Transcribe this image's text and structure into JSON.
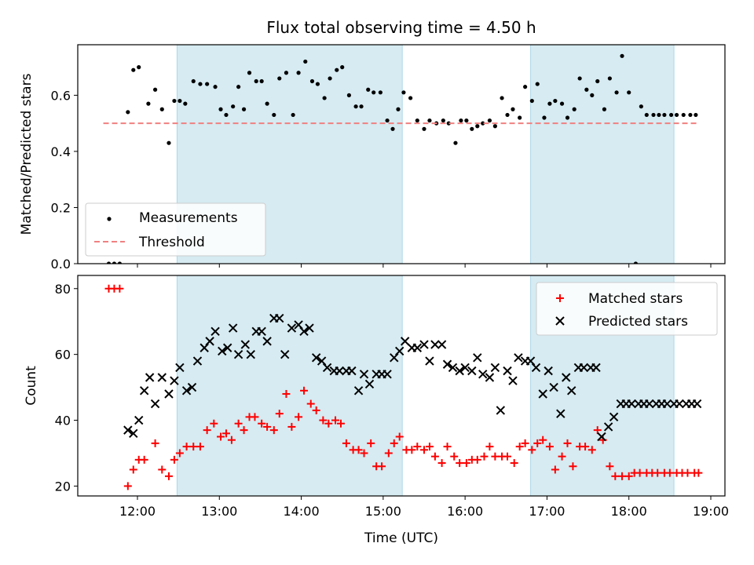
{
  "title": "Flux total observing time = 4.50 h",
  "colors": {
    "shade": "#add8e6",
    "measurement": "#000000",
    "threshold": "#f08080",
    "matched": "#ff0000",
    "predicted": "#000000"
  },
  "chart_data": [
    {
      "type": "scatter",
      "ylabel": "Matched/Predicted stars",
      "xlabel": "",
      "xlim": [
        "11:30",
        "19:10"
      ],
      "ylim": [
        0,
        0.78
      ],
      "yticks": [
        0.0,
        0.2,
        0.4,
        0.6
      ],
      "ytick_labels": [
        "0.0",
        "0.2",
        "0.4",
        "0.6"
      ],
      "xticks": [
        "12:00",
        "13:00",
        "14:00",
        "15:00",
        "16:00",
        "17:00",
        "18:00",
        "19:00"
      ],
      "shaded_intervals": [
        [
          "12:29",
          "15:14"
        ],
        [
          "16:48",
          "18:33"
        ]
      ],
      "legend_position": "lower-left",
      "series": [
        {
          "name": "Measurements",
          "marker": "dot",
          "x": [
            "11:39",
            "11:43",
            "11:47",
            "11:53",
            "11:57",
            "12:01",
            "12:08",
            "12:13",
            "12:18",
            "12:23",
            "12:27",
            "12:31",
            "12:35",
            "12:41",
            "12:46",
            "12:51",
            "12:57",
            "13:01",
            "13:05",
            "13:10",
            "13:14",
            "13:18",
            "13:22",
            "13:27",
            "13:31",
            "13:35",
            "13:40",
            "13:44",
            "13:49",
            "13:54",
            "13:58",
            "14:03",
            "14:08",
            "14:12",
            "14:17",
            "14:21",
            "14:26",
            "14:30",
            "14:35",
            "14:40",
            "14:44",
            "14:49",
            "14:53",
            "14:58",
            "15:03",
            "15:07",
            "15:11",
            "15:15",
            "15:20",
            "15:25",
            "15:30",
            "15:34",
            "15:39",
            "15:44",
            "15:48",
            "15:53",
            "15:57",
            "16:01",
            "16:05",
            "16:09",
            "16:13",
            "16:18",
            "16:22",
            "16:27",
            "16:31",
            "16:35",
            "16:40",
            "16:44",
            "16:49",
            "16:53",
            "16:58",
            "17:02",
            "17:06",
            "17:11",
            "17:15",
            "17:20",
            "17:24",
            "17:29",
            "17:33",
            "17:37",
            "17:42",
            "17:46",
            "17:51",
            "17:55",
            "18:00",
            "18:05",
            "18:09",
            "18:13",
            "18:18",
            "18:22",
            "18:26",
            "18:31",
            "18:35",
            "18:40",
            "18:45",
            "18:49"
          ],
          "y": [
            0.0,
            0.0,
            0.0,
            0.54,
            0.69,
            0.7,
            0.57,
            0.62,
            0.55,
            0.43,
            0.58,
            0.58,
            0.57,
            0.65,
            0.64,
            0.64,
            0.63,
            0.55,
            0.53,
            0.56,
            0.63,
            0.55,
            0.68,
            0.65,
            0.65,
            0.57,
            0.53,
            0.66,
            0.68,
            0.53,
            0.68,
            0.72,
            0.65,
            0.64,
            0.59,
            0.66,
            0.69,
            0.7,
            0.6,
            0.56,
            0.56,
            0.62,
            0.61,
            0.61,
            0.51,
            0.48,
            0.55,
            0.61,
            0.59,
            0.51,
            0.48,
            0.51,
            0.5,
            0.51,
            0.5,
            0.43,
            0.51,
            0.51,
            0.48,
            0.49,
            0.5,
            0.51,
            0.49,
            0.59,
            0.53,
            0.55,
            0.52,
            0.63,
            0.58,
            0.64,
            0.52,
            0.57,
            0.58,
            0.57,
            0.52,
            0.55,
            0.66,
            0.62,
            0.6,
            0.65,
            0.55,
            0.66,
            0.61,
            0.74,
            0.61,
            0.0,
            0.56,
            0.53,
            0.53,
            0.53,
            0.53,
            0.53,
            0.53,
            0.53,
            0.53,
            0.53
          ]
        },
        {
          "name": "Threshold",
          "style": "dashed",
          "x": [
            "11:35",
            "18:50"
          ],
          "y": [
            0.5,
            0.5
          ]
        }
      ]
    },
    {
      "type": "scatter",
      "ylabel": "Count",
      "xlabel": "Time (UTC)",
      "xlim": [
        "11:30",
        "19:10"
      ],
      "ylim": [
        17,
        84
      ],
      "yticks": [
        20,
        40,
        60,
        80
      ],
      "ytick_labels": [
        "20",
        "40",
        "60",
        "80"
      ],
      "xticks": [
        "12:00",
        "13:00",
        "14:00",
        "15:00",
        "16:00",
        "17:00",
        "18:00",
        "19:00"
      ],
      "xtick_labels": [
        "12:00",
        "13:00",
        "14:00",
        "15:00",
        "16:00",
        "17:00",
        "18:00",
        "19:00"
      ],
      "shaded_intervals": [
        [
          "12:29",
          "15:14"
        ],
        [
          "16:48",
          "18:33"
        ]
      ],
      "legend_position": "upper-right",
      "series": [
        {
          "name": "Matched stars",
          "marker": "plus",
          "x": [
            "11:39",
            "11:43",
            "11:47",
            "11:53",
            "11:57",
            "12:01",
            "12:05",
            "12:13",
            "12:18",
            "12:23",
            "12:27",
            "12:31",
            "12:36",
            "12:41",
            "12:46",
            "12:51",
            "12:56",
            "13:01",
            "13:05",
            "13:09",
            "13:14",
            "13:18",
            "13:22",
            "13:26",
            "13:31",
            "13:35",
            "13:40",
            "13:44",
            "13:49",
            "13:53",
            "13:58",
            "14:02",
            "14:07",
            "14:11",
            "14:16",
            "14:20",
            "14:25",
            "14:29",
            "14:33",
            "14:38",
            "14:42",
            "14:46",
            "14:51",
            "14:55",
            "14:59",
            "15:04",
            "15:08",
            "15:12",
            "15:17",
            "15:21",
            "15:25",
            "15:30",
            "15:34",
            "15:38",
            "15:43",
            "15:47",
            "15:52",
            "15:56",
            "16:01",
            "16:05",
            "16:09",
            "16:14",
            "16:18",
            "16:22",
            "16:27",
            "16:31",
            "16:36",
            "16:40",
            "16:44",
            "16:49",
            "16:53",
            "16:57",
            "17:02",
            "17:06",
            "17:11",
            "17:15",
            "17:19",
            "17:24",
            "17:28",
            "17:33",
            "17:37",
            "17:41",
            "17:46",
            "17:50",
            "17:55",
            "18:00",
            "18:04",
            "18:08",
            "18:13",
            "18:17",
            "18:21",
            "18:26",
            "18:30",
            "18:35",
            "18:39",
            "18:43",
            "18:48",
            "18:51"
          ],
          "y": [
            80,
            80,
            80,
            20,
            25,
            28,
            28,
            33,
            25,
            23,
            28,
            30,
            32,
            32,
            32,
            37,
            39,
            35,
            36,
            34,
            39,
            37,
            41,
            41,
            39,
            38,
            37,
            42,
            48,
            38,
            41,
            49,
            45,
            43,
            40,
            39,
            40,
            39,
            33,
            31,
            31,
            30,
            33,
            26,
            26,
            30,
            33,
            35,
            31,
            31,
            32,
            31,
            32,
            29,
            27,
            32,
            29,
            27,
            27,
            28,
            28,
            29,
            32,
            29,
            29,
            29,
            27,
            32,
            33,
            31,
            33,
            34,
            32,
            25,
            29,
            33,
            26,
            32,
            32,
            31,
            37,
            34,
            26,
            23,
            23,
            23,
            24,
            24,
            24,
            24,
            24,
            24,
            24,
            24,
            24,
            24,
            24,
            24
          ],
          "_note_unused": ""
        },
        {
          "name": "Predicted stars",
          "marker": "x",
          "x": [
            "11:53",
            "11:57",
            "12:01",
            "12:05",
            "12:09",
            "12:13",
            "12:18",
            "12:23",
            "12:27",
            "12:31",
            "12:36",
            "12:40",
            "12:44",
            "12:49",
            "12:53",
            "12:57",
            "13:02",
            "13:06",
            "13:10",
            "13:14",
            "13:19",
            "13:23",
            "13:27",
            "13:31",
            "13:35",
            "13:40",
            "13:44",
            "13:48",
            "13:53",
            "13:58",
            "14:02",
            "14:06",
            "14:11",
            "14:15",
            "14:19",
            "14:24",
            "14:28",
            "14:33",
            "14:37",
            "14:42",
            "14:46",
            "14:50",
            "14:55",
            "14:59",
            "15:03",
            "15:08",
            "15:12",
            "15:16",
            "15:21",
            "15:25",
            "15:30",
            "15:34",
            "15:38",
            "15:43",
            "15:47",
            "15:51",
            "15:56",
            "16:00",
            "16:05",
            "16:09",
            "16:13",
            "16:18",
            "16:22",
            "16:26",
            "16:31",
            "16:35",
            "16:39",
            "16:44",
            "16:48",
            "16:52",
            "16:57",
            "17:01",
            "17:05",
            "17:10",
            "17:14",
            "17:18",
            "17:23",
            "17:27",
            "17:32",
            "17:36",
            "17:40",
            "17:45",
            "17:49",
            "17:54",
            "17:58",
            "18:02",
            "18:07",
            "18:11",
            "18:15",
            "18:20",
            "18:24",
            "18:28",
            "18:33",
            "18:37",
            "18:42",
            "18:46",
            "18:50"
          ],
          "y": [
            37,
            36,
            40,
            49,
            53,
            45,
            53,
            48,
            52,
            56,
            49,
            50,
            58,
            62,
            64,
            67,
            61,
            62,
            68,
            60,
            63,
            60,
            67,
            67,
            64,
            71,
            71,
            60,
            68,
            69,
            67,
            68,
            59,
            58,
            56,
            55,
            55,
            55,
            55,
            49,
            54,
            51,
            54,
            54,
            54,
            59,
            61,
            64,
            62,
            62,
            63,
            58,
            63,
            63,
            57,
            56,
            55,
            56,
            55,
            59,
            54,
            53,
            56,
            43,
            55,
            52,
            59,
            58,
            58,
            56,
            48,
            55,
            50,
            42,
            53,
            49,
            56,
            56,
            56,
            56,
            35,
            38,
            41,
            45,
            45,
            45,
            45,
            45,
            45,
            45,
            45,
            45,
            45,
            45,
            45,
            45,
            45
          ]
        }
      ]
    }
  ]
}
